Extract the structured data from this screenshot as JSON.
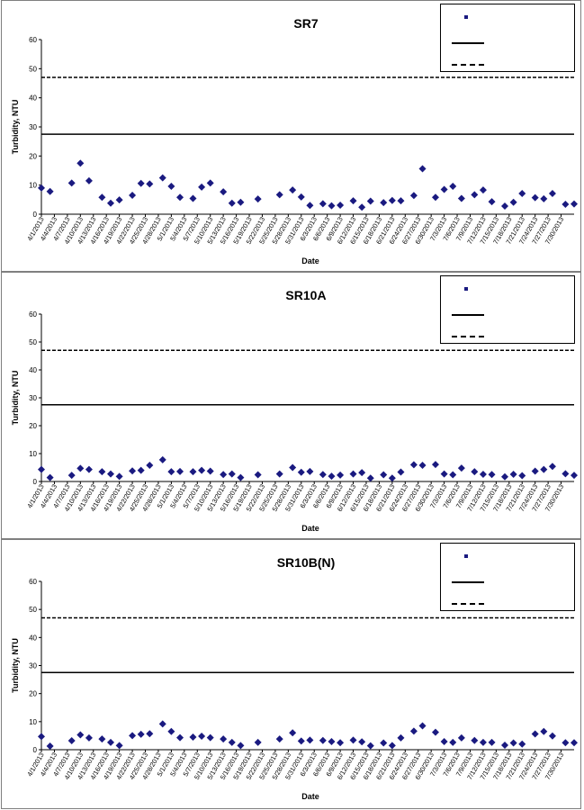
{
  "dates": [
    "4/1/2013",
    "4/4/2013",
    "4/7/2013",
    "4/10/2013",
    "4/13/2013",
    "4/16/2013",
    "4/19/2013",
    "4/22/2013",
    "4/25/2013",
    "4/28/2013",
    "5/1/2013",
    "5/4/2013",
    "5/7/2013",
    "5/10/2013",
    "5/13/2013",
    "5/16/2013",
    "5/19/2013",
    "5/22/2013",
    "5/25/2013",
    "5/28/2013",
    "5/31/2013",
    "6/3/2013",
    "6/6/2013",
    "6/9/2013",
    "6/12/2013",
    "6/15/2013",
    "6/18/2013",
    "6/21/2013",
    "6/24/2013",
    "6/27/2013",
    "6/30/2013",
    "7/3/2013",
    "7/6/2013",
    "7/9/2013",
    "7/12/2013",
    "7/15/2013",
    "7/18/2013",
    "7/21/2013",
    "7/24/2013",
    "7/27/2013",
    "7/30/2013"
  ],
  "chart_data": [
    {
      "type": "scatter",
      "title": "SR7",
      "xlabel": "Date",
      "ylabel": "Turbidity, NTU",
      "ylim": [
        0,
        60
      ],
      "yticks": [
        0,
        10,
        20,
        30,
        40,
        50,
        60
      ],
      "reference_lines": [
        {
          "y": 27.5,
          "style": "solid"
        },
        {
          "y": 47,
          "style": "dashed"
        }
      ],
      "legend": {
        "placement": "top-right"
      },
      "points": [
        [
          "4/1/2013",
          9.0
        ],
        [
          "4/3/2013",
          7.8
        ],
        [
          "4/8/2013",
          10.7
        ],
        [
          "4/10/2013",
          17.5
        ],
        [
          "4/12/2013",
          11.5
        ],
        [
          "4/15/2013",
          5.8
        ],
        [
          "4/17/2013",
          3.8
        ],
        [
          "4/19/2013",
          4.9
        ],
        [
          "4/22/2013",
          6.5
        ],
        [
          "4/24/2013",
          10.6
        ],
        [
          "4/26/2013",
          10.4
        ],
        [
          "4/29/2013",
          12.5
        ],
        [
          "5/1/2013",
          9.6
        ],
        [
          "5/3/2013",
          5.8
        ],
        [
          "5/6/2013",
          5.4
        ],
        [
          "5/8/2013",
          9.3
        ],
        [
          "5/10/2013",
          10.7
        ],
        [
          "5/13/2013",
          7.7
        ],
        [
          "5/15/2013",
          3.8
        ],
        [
          "5/17/2013",
          4.1
        ],
        [
          "5/21/2013",
          5.2
        ],
        [
          "5/26/2013",
          6.7
        ],
        [
          "5/29/2013",
          8.3
        ],
        [
          "5/31/2013",
          5.9
        ],
        [
          "6/2/2013",
          3.0
        ],
        [
          "6/5/2013",
          3.6
        ],
        [
          "6/7/2013",
          2.9
        ],
        [
          "6/9/2013",
          3.1
        ],
        [
          "6/12/2013",
          4.6
        ],
        [
          "6/14/2013",
          2.4
        ],
        [
          "6/16/2013",
          4.5
        ],
        [
          "6/19/2013",
          4.0
        ],
        [
          "6/21/2013",
          4.7
        ],
        [
          "6/23/2013",
          4.6
        ],
        [
          "6/26/2013",
          6.4
        ],
        [
          "6/28/2013",
          15.6
        ],
        [
          "7/1/2013",
          5.8
        ],
        [
          "7/3/2013",
          8.5
        ],
        [
          "7/5/2013",
          9.6
        ],
        [
          "7/7/2013",
          5.4
        ],
        [
          "7/10/2013",
          6.7
        ],
        [
          "7/12/2013",
          8.3
        ],
        [
          "7/14/2013",
          4.3
        ],
        [
          "7/17/2013",
          2.8
        ],
        [
          "7/19/2013",
          4.1
        ],
        [
          "7/21/2013",
          7.1
        ],
        [
          "7/24/2013",
          5.7
        ],
        [
          "7/26/2013",
          5.3
        ],
        [
          "7/28/2013",
          7.1
        ],
        [
          "7/31/2013",
          3.4
        ],
        [
          "8/2/2013",
          3.5
        ]
      ]
    },
    {
      "type": "scatter",
      "title": "SR10A",
      "xlabel": "Date",
      "ylabel": "Turbidity, NTU",
      "ylim": [
        0,
        60
      ],
      "yticks": [
        0,
        10,
        20,
        30,
        40,
        50,
        60
      ],
      "reference_lines": [
        {
          "y": 27.5,
          "style": "solid"
        },
        {
          "y": 47,
          "style": "dashed"
        }
      ],
      "legend": {
        "placement": "top-right"
      },
      "points": [
        [
          "4/1/2013",
          4.3
        ],
        [
          "4/3/2013",
          1.4
        ],
        [
          "4/8/2013",
          2.2
        ],
        [
          "4/10/2013",
          4.7
        ],
        [
          "4/12/2013",
          4.3
        ],
        [
          "4/15/2013",
          3.5
        ],
        [
          "4/17/2013",
          2.7
        ],
        [
          "4/19/2013",
          1.8
        ],
        [
          "4/22/2013",
          3.8
        ],
        [
          "4/24/2013",
          4.0
        ],
        [
          "4/26/2013",
          5.8
        ],
        [
          "4/29/2013",
          7.8
        ],
        [
          "5/1/2013",
          3.5
        ],
        [
          "5/3/2013",
          3.6
        ],
        [
          "5/6/2013",
          3.5
        ],
        [
          "5/8/2013",
          4.0
        ],
        [
          "5/10/2013",
          3.7
        ],
        [
          "5/13/2013",
          2.5
        ],
        [
          "5/15/2013",
          2.7
        ],
        [
          "5/17/2013",
          1.4
        ],
        [
          "5/21/2013",
          2.4
        ],
        [
          "5/26/2013",
          2.7
        ],
        [
          "5/29/2013",
          5.0
        ],
        [
          "5/31/2013",
          3.3
        ],
        [
          "6/2/2013",
          3.6
        ],
        [
          "6/5/2013",
          2.5
        ],
        [
          "6/7/2013",
          1.9
        ],
        [
          "6/9/2013",
          2.3
        ],
        [
          "6/12/2013",
          2.7
        ],
        [
          "6/14/2013",
          3.2
        ],
        [
          "6/16/2013",
          1.2
        ],
        [
          "6/19/2013",
          2.4
        ],
        [
          "6/21/2013",
          1.2
        ],
        [
          "6/23/2013",
          3.4
        ],
        [
          "6/26/2013",
          6.0
        ],
        [
          "6/28/2013",
          5.8
        ],
        [
          "7/1/2013",
          6.1
        ],
        [
          "7/3/2013",
          2.7
        ],
        [
          "7/5/2013",
          2.4
        ],
        [
          "7/7/2013",
          4.8
        ],
        [
          "7/10/2013",
          3.5
        ],
        [
          "7/12/2013",
          2.6
        ],
        [
          "7/14/2013",
          2.5
        ],
        [
          "7/17/2013",
          1.7
        ],
        [
          "7/19/2013",
          2.6
        ],
        [
          "7/21/2013",
          2.1
        ],
        [
          "7/24/2013",
          3.7
        ],
        [
          "7/26/2013",
          4.3
        ],
        [
          "7/28/2013",
          5.4
        ],
        [
          "7/31/2013",
          2.8
        ],
        [
          "8/2/2013",
          2.2
        ]
      ]
    },
    {
      "type": "scatter",
      "title": "SR10B(N)",
      "xlabel": "Date",
      "ylabel": "Turbidity, NTU",
      "ylim": [
        0,
        60
      ],
      "yticks": [
        0,
        10,
        20,
        30,
        40,
        50,
        60
      ],
      "reference_lines": [
        {
          "y": 27.5,
          "style": "solid"
        },
        {
          "y": 47,
          "style": "dashed"
        }
      ],
      "legend": {
        "placement": "top-right"
      },
      "points": [
        [
          "4/1/2013",
          4.7
        ],
        [
          "4/3/2013",
          1.3
        ],
        [
          "4/8/2013",
          3.2
        ],
        [
          "4/10/2013",
          5.3
        ],
        [
          "4/12/2013",
          4.2
        ],
        [
          "4/15/2013",
          3.8
        ],
        [
          "4/17/2013",
          2.6
        ],
        [
          "4/19/2013",
          1.5
        ],
        [
          "4/22/2013",
          5.0
        ],
        [
          "4/24/2013",
          5.5
        ],
        [
          "4/26/2013",
          5.7
        ],
        [
          "4/29/2013",
          9.2
        ],
        [
          "5/1/2013",
          6.5
        ],
        [
          "5/3/2013",
          4.3
        ],
        [
          "5/6/2013",
          4.5
        ],
        [
          "5/8/2013",
          4.8
        ],
        [
          "5/10/2013",
          4.3
        ],
        [
          "5/13/2013",
          3.8
        ],
        [
          "5/15/2013",
          2.6
        ],
        [
          "5/17/2013",
          1.5
        ],
        [
          "5/21/2013",
          2.6
        ],
        [
          "5/26/2013",
          3.8
        ],
        [
          "5/29/2013",
          6.0
        ],
        [
          "5/31/2013",
          3.1
        ],
        [
          "6/2/2013",
          3.4
        ],
        [
          "6/5/2013",
          3.3
        ],
        [
          "6/7/2013",
          2.9
        ],
        [
          "6/9/2013",
          2.5
        ],
        [
          "6/12/2013",
          3.4
        ],
        [
          "6/14/2013",
          2.8
        ],
        [
          "6/16/2013",
          1.4
        ],
        [
          "6/19/2013",
          2.4
        ],
        [
          "6/21/2013",
          1.5
        ],
        [
          "6/23/2013",
          4.2
        ],
        [
          "6/26/2013",
          6.6
        ],
        [
          "6/28/2013",
          8.5
        ],
        [
          "7/1/2013",
          6.2
        ],
        [
          "7/3/2013",
          2.9
        ],
        [
          "7/5/2013",
          2.6
        ],
        [
          "7/7/2013",
          4.2
        ],
        [
          "7/10/2013",
          3.3
        ],
        [
          "7/12/2013",
          2.6
        ],
        [
          "7/14/2013",
          2.6
        ],
        [
          "7/17/2013",
          1.6
        ],
        [
          "7/19/2013",
          2.4
        ],
        [
          "7/21/2013",
          2.0
        ],
        [
          "7/24/2013",
          5.6
        ],
        [
          "7/26/2013",
          6.5
        ],
        [
          "7/28/2013",
          4.9
        ],
        [
          "7/31/2013",
          2.5
        ],
        [
          "8/2/2013",
          2.5
        ]
      ]
    }
  ],
  "colors": {
    "marker": "#1a1a80",
    "axis": "#000000",
    "grid": "#bfbfbf"
  }
}
